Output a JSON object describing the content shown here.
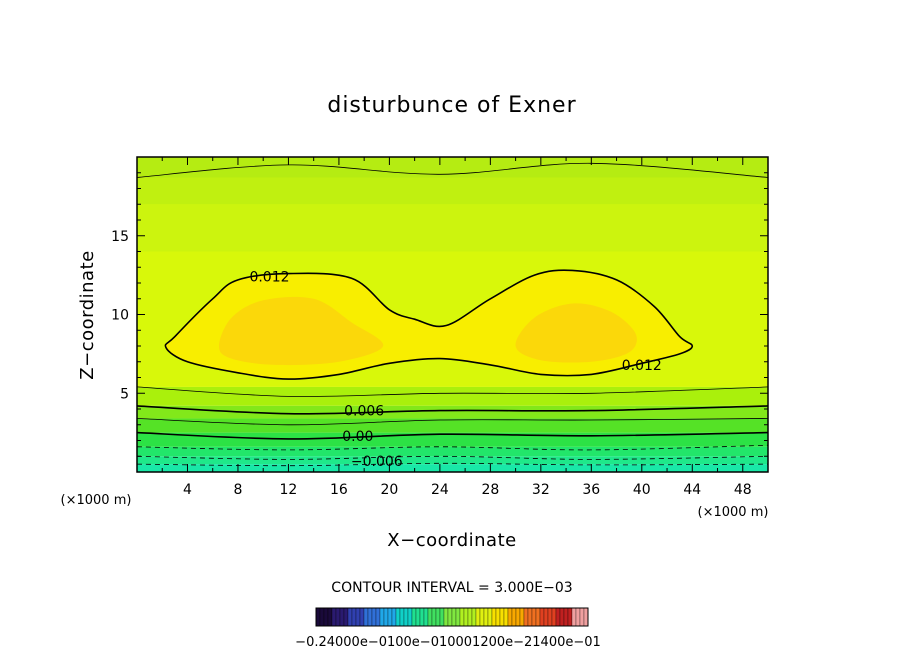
{
  "chart_data": {
    "type": "contour",
    "title": "disturbunce of Exner",
    "xlabel": "X−coordinate",
    "ylabel": "Z−coordinate",
    "xunit_left": "(×1000 m)",
    "xunit_right": "(×1000 m)",
    "xlim": [
      0,
      50
    ],
    "ylim": [
      0,
      20
    ],
    "xticks": [
      4,
      8,
      12,
      16,
      20,
      24,
      28,
      32,
      36,
      40,
      44,
      48
    ],
    "yticks": [
      5,
      10,
      15
    ],
    "contour_interval_text": "CONTOUR INTERVAL = 3.000E−03",
    "contour_labels": [
      {
        "text": "0.012",
        "x": 10.5,
        "z": 12.4
      },
      {
        "text": "0.012",
        "x": 40.0,
        "z": 6.8
      },
      {
        "text": "0.006",
        "x": 18.0,
        "z": 3.9
      },
      {
        "text": "0.00",
        "x": 17.5,
        "z": 2.3
      },
      {
        "text": "−0.006",
        "x": 19.0,
        "z": 0.7
      }
    ],
    "contour_lines": [
      {
        "level": -0.009,
        "style": "dashed",
        "weight": "thin",
        "points": [
          [
            0,
            0.5
          ],
          [
            12,
            0.4
          ],
          [
            24,
            0.55
          ],
          [
            36,
            0.45
          ],
          [
            50,
            0.5
          ]
        ]
      },
      {
        "level": -0.006,
        "style": "dashed",
        "weight": "thin",
        "points": [
          [
            0,
            1.0
          ],
          [
            12,
            0.8
          ],
          [
            24,
            1.0
          ],
          [
            36,
            0.8
          ],
          [
            50,
            1.0
          ]
        ]
      },
      {
        "level": -0.003,
        "style": "dashed",
        "weight": "thin",
        "points": [
          [
            0,
            1.6
          ],
          [
            12,
            1.4
          ],
          [
            24,
            1.6
          ],
          [
            36,
            1.4
          ],
          [
            50,
            1.7
          ]
        ]
      },
      {
        "level": 0.0,
        "style": "solid",
        "weight": "thick",
        "points": [
          [
            0,
            2.5
          ],
          [
            12,
            2.1
          ],
          [
            24,
            2.4
          ],
          [
            36,
            2.3
          ],
          [
            50,
            2.5
          ]
        ]
      },
      {
        "level": 0.003,
        "style": "solid",
        "weight": "thin",
        "points": [
          [
            0,
            3.4
          ],
          [
            12,
            3.0
          ],
          [
            24,
            3.3
          ],
          [
            36,
            3.3
          ],
          [
            50,
            3.4
          ]
        ]
      },
      {
        "level": 0.006,
        "style": "solid",
        "weight": "thick",
        "points": [
          [
            0,
            4.2
          ],
          [
            12,
            3.7
          ],
          [
            24,
            3.9
          ],
          [
            36,
            3.9
          ],
          [
            50,
            4.2
          ]
        ]
      },
      {
        "level": 0.009,
        "style": "solid",
        "weight": "thin",
        "points": [
          [
            0,
            5.4
          ],
          [
            12,
            4.8
          ],
          [
            24,
            5.0
          ],
          [
            36,
            5.0
          ],
          [
            50,
            5.4
          ]
        ]
      },
      {
        "level": 0.009,
        "style": "solid",
        "weight": "thin",
        "points": [
          [
            0,
            18.7
          ],
          [
            12,
            19.5
          ],
          [
            24,
            18.9
          ],
          [
            36,
            19.6
          ],
          [
            50,
            18.7
          ]
        ]
      },
      {
        "level": 0.012,
        "style": "solid",
        "weight": "thick",
        "closed": true,
        "points": [
          [
            2.3,
            7.9
          ],
          [
            3.0,
            8.6
          ],
          [
            6.0,
            11.0
          ],
          [
            8.0,
            12.2
          ],
          [
            12.0,
            12.6
          ],
          [
            17.0,
            12.3
          ],
          [
            20.0,
            10.3
          ],
          [
            22.0,
            9.7
          ],
          [
            24.5,
            9.3
          ],
          [
            28.0,
            11.0
          ],
          [
            31.5,
            12.5
          ],
          [
            34.5,
            12.8
          ],
          [
            38.0,
            12.2
          ],
          [
            41.0,
            10.5
          ],
          [
            43.0,
            8.6
          ],
          [
            44.0,
            8.0
          ],
          [
            43.0,
            7.5
          ],
          [
            40.0,
            6.9
          ],
          [
            36.0,
            6.2
          ],
          [
            32.0,
            6.2
          ],
          [
            28.0,
            6.8
          ],
          [
            24.0,
            7.2
          ],
          [
            20.0,
            6.9
          ],
          [
            16.0,
            6.2
          ],
          [
            12.0,
            5.9
          ],
          [
            8.0,
            6.3
          ],
          [
            4.0,
            7.0
          ],
          [
            2.3,
            7.9
          ]
        ]
      }
    ],
    "fill_bands": [
      {
        "z_bottom": 0.0,
        "z_top": 0.5,
        "color": "#19e8a8"
      },
      {
        "z_bottom": 0.5,
        "z_top": 1.0,
        "color": "#1fe88a"
      },
      {
        "z_bottom": 1.0,
        "z_top": 1.6,
        "color": "#22e66a"
      },
      {
        "z_bottom": 1.6,
        "z_top": 2.5,
        "color": "#2ce245"
      },
      {
        "z_bottom": 2.5,
        "z_top": 3.4,
        "color": "#55e226"
      },
      {
        "z_bottom": 3.4,
        "z_top": 4.2,
        "color": "#82e81a"
      },
      {
        "z_bottom": 4.2,
        "z_top": 5.4,
        "color": "#aaf00c"
      },
      {
        "z_bottom": 5.4,
        "z_top": 20.0,
        "color": "#d8f80a"
      }
    ],
    "upper_fill": [
      {
        "z_bottom": 14.0,
        "z_top": 17.0,
        "color": "#ccf40e"
      },
      {
        "z_bottom": 17.0,
        "z_top": 18.7,
        "color": "#c0f010"
      },
      {
        "z_bottom": 18.7,
        "z_top": 20.0,
        "color": "#b5ec12"
      }
    ],
    "inner_fill": {
      "inside_012": "#f8ee00",
      "core": "#fbd80a"
    },
    "core_regions": [
      {
        "points": [
          [
            6.5,
            8.0
          ],
          [
            7.5,
            9.8
          ],
          [
            10.0,
            10.9
          ],
          [
            14.0,
            11.0
          ],
          [
            17.0,
            9.5
          ],
          [
            19.5,
            8.0
          ],
          [
            16.0,
            7.0
          ],
          [
            11.0,
            6.8
          ],
          [
            7.5,
            7.2
          ]
        ]
      },
      {
        "points": [
          [
            30.0,
            8.0
          ],
          [
            31.5,
            9.8
          ],
          [
            34.5,
            10.7
          ],
          [
            37.5,
            10.2
          ],
          [
            39.5,
            8.8
          ],
          [
            39.0,
            7.6
          ],
          [
            36.0,
            7.0
          ],
          [
            32.0,
            7.1
          ]
        ]
      }
    ],
    "colorbar": {
      "labels_text": "−0.24000e−0100e−010001200e−21400e−01",
      "colors": [
        "#1a0a3a",
        "#2a1a70",
        "#3040b0",
        "#3070d8",
        "#20a8e8",
        "#10d0c8",
        "#20e090",
        "#40e060",
        "#80e840",
        "#b0f020",
        "#e0f010",
        "#f8e000",
        "#f8a800",
        "#f07020",
        "#e04020",
        "#c02020",
        "#f0a0a0"
      ]
    },
    "frame_color": "#000000"
  }
}
